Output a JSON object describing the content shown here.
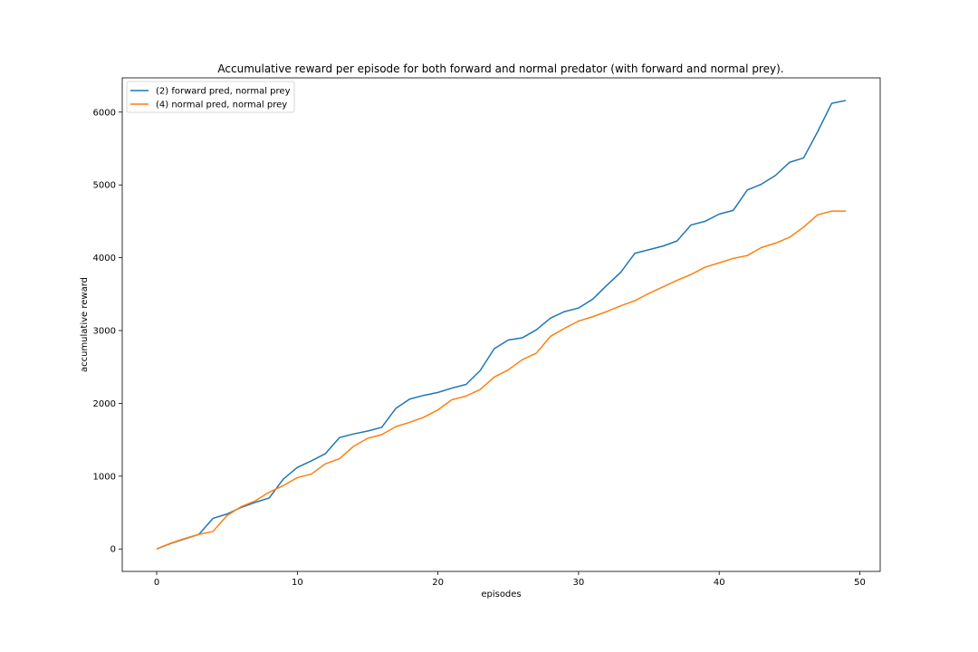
{
  "chart_data": {
    "type": "line",
    "title": "Accumulative reward per episode for both forward and normal predator (with forward and normal prey).",
    "xlabel": "episodes",
    "ylabel": "accumulative reward",
    "xlim": [
      -2.45,
      51.45
    ],
    "ylim": [
      -308,
      6470
    ],
    "xticks": [
      0,
      10,
      20,
      30,
      40,
      50
    ],
    "yticks": [
      0,
      1000,
      2000,
      3000,
      4000,
      5000,
      6000
    ],
    "grid": false,
    "legend_position": "top-left",
    "x": [
      0,
      1,
      2,
      3,
      4,
      5,
      6,
      7,
      8,
      9,
      10,
      11,
      12,
      13,
      14,
      15,
      16,
      17,
      18,
      19,
      20,
      21,
      22,
      23,
      24,
      25,
      26,
      27,
      28,
      29,
      30,
      31,
      32,
      33,
      34,
      35,
      36,
      37,
      38,
      39,
      40,
      41,
      42,
      43,
      44,
      45,
      46,
      47,
      48,
      49
    ],
    "series": [
      {
        "name": "(2) forward pred, normal prey",
        "color": "#1f77b4",
        "values": [
          0,
          75,
          140,
          200,
          420,
          480,
          570,
          640,
          700,
          960,
          1120,
          1210,
          1310,
          1530,
          1580,
          1620,
          1670,
          1930,
          2060,
          2110,
          2150,
          2210,
          2260,
          2450,
          2750,
          2870,
          2900,
          3010,
          3170,
          3260,
          3310,
          3430,
          3620,
          3800,
          4060,
          4110,
          4160,
          4230,
          4450,
          4500,
          4600,
          4650,
          4930,
          5010,
          5130,
          5310,
          5370,
          5730,
          6120,
          6160
        ]
      },
      {
        "name": "(4) normal pred, normal prey",
        "color": "#ff7f0e",
        "values": [
          0,
          80,
          145,
          200,
          240,
          460,
          580,
          660,
          780,
          870,
          980,
          1030,
          1170,
          1240,
          1410,
          1520,
          1570,
          1680,
          1740,
          1810,
          1910,
          2050,
          2100,
          2190,
          2360,
          2460,
          2600,
          2690,
          2920,
          3030,
          3130,
          3190,
          3260,
          3340,
          3410,
          3510,
          3600,
          3690,
          3770,
          3870,
          3930,
          3990,
          4030,
          4140,
          4200,
          4280,
          4420,
          4590,
          4640,
          4640
        ]
      }
    ]
  }
}
